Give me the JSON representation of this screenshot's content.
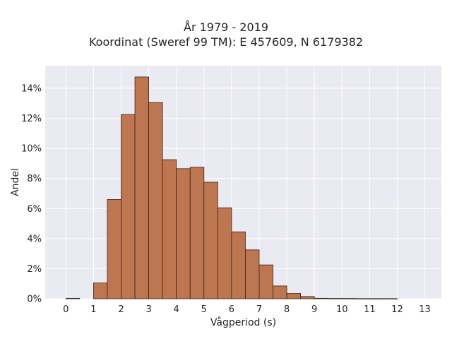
{
  "chart_data": {
    "type": "bar",
    "title_line1": "År 1979 - 2019",
    "title_line2": "Koordinat (Sweref 99 TM): E 457609, N 6179382",
    "xlabel": "Vågperiod (s)",
    "ylabel": "Andel",
    "xlim": [
      -0.75,
      13.6
    ],
    "ylim": [
      0,
      0.155
    ],
    "x_ticks": [
      0,
      1,
      2,
      3,
      4,
      5,
      6,
      7,
      8,
      9,
      10,
      11,
      12,
      13
    ],
    "y_ticks": [
      0,
      0.02,
      0.04,
      0.06,
      0.08,
      0.1,
      0.12,
      0.14
    ],
    "y_tick_labels": [
      "0%",
      "2%",
      "4%",
      "6%",
      "8%",
      "10%",
      "12%",
      "14%"
    ],
    "bin_width": 0.5,
    "bin_starts": [
      0,
      0.5,
      1,
      1.5,
      2,
      2.5,
      3,
      3.5,
      4,
      4.5,
      5,
      5.5,
      6,
      6.5,
      7,
      7.5,
      8,
      8.5,
      9,
      9.5,
      10,
      10.5,
      11,
      11.5,
      12,
      12.5
    ],
    "values": [
      0.0003,
      0.0,
      0.0105,
      0.066,
      0.1225,
      0.1475,
      0.1305,
      0.0925,
      0.0865,
      0.0875,
      0.0775,
      0.0605,
      0.0445,
      0.0325,
      0.0225,
      0.0085,
      0.0035,
      0.0015,
      0.0003,
      0.0002,
      0.0002,
      0.0001,
      0.0001,
      0.0001,
      0.0,
      0.0
    ],
    "grid": true,
    "colors": {
      "bar_fill": "#bd7650",
      "bar_edge": "#3a2418",
      "plot_bg": "#eaeaf2",
      "grid": "#ffffff",
      "text": "#262626"
    }
  }
}
